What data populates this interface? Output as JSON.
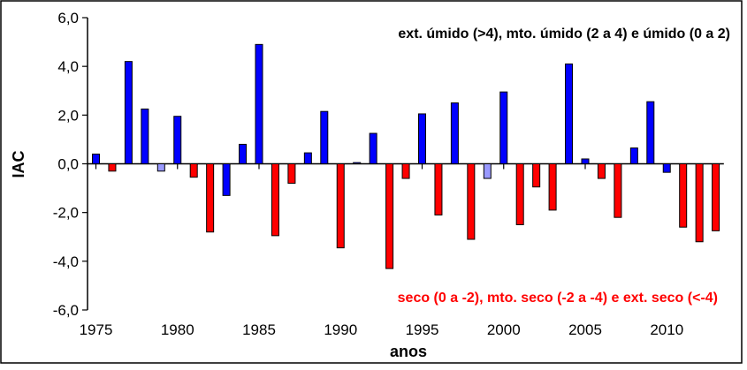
{
  "chart_data": {
    "type": "bar",
    "xlabel": "anos",
    "ylabel": "IAC",
    "ylim": [
      -6,
      6
    ],
    "y_ticks": [
      "6,0",
      "4,0",
      "2,0",
      "0,0",
      "-2,0",
      "-4,0",
      "-6,0"
    ],
    "y_tick_values": [
      6,
      4,
      2,
      0,
      -2,
      -4,
      -6
    ],
    "x_ticks": [
      "1975",
      "1980",
      "1985",
      "1990",
      "1995",
      "2000",
      "2005",
      "2010"
    ],
    "x_tick_values": [
      1975,
      1980,
      1985,
      1990,
      1995,
      2000,
      2005,
      2010
    ],
    "annotations": {
      "wet": "ext. úmido (>4), mto. úmido (2 a 4) e úmido (0 a 2)",
      "dry": "seco (0 a -2), mto. seco (-2 a -4) e ext. seco (<-4)"
    },
    "colors": {
      "wet_strong": "#0000ff",
      "wet_light": "#9999ff",
      "dry": "#ff0000",
      "wet_annotation": "#000000",
      "dry_annotation": "#ff0000"
    },
    "x": [
      1975,
      1976,
      1977,
      1978,
      1979,
      1980,
      1981,
      1982,
      1983,
      1984,
      1985,
      1986,
      1987,
      1988,
      1989,
      1990,
      1991,
      1992,
      1993,
      1994,
      1995,
      1996,
      1997,
      1998,
      1999,
      2000,
      2001,
      2002,
      2003,
      2004,
      2005,
      2006,
      2007,
      2008,
      2009,
      2010,
      2011,
      2012,
      2013
    ],
    "values": [
      0.4,
      -0.3,
      4.2,
      2.25,
      -0.3,
      1.95,
      -0.55,
      -2.8,
      -1.3,
      0.8,
      4.9,
      -2.95,
      -0.8,
      0.45,
      2.15,
      -3.45,
      0.05,
      1.25,
      -4.3,
      -0.6,
      2.05,
      -2.1,
      2.5,
      -3.1,
      -0.6,
      2.95,
      -2.5,
      -0.95,
      -1.9,
      4.1,
      0.2,
      -0.6,
      -2.2,
      0.65,
      2.55,
      -0.35,
      -2.6,
      -3.2,
      -2.75
    ],
    "bar_colors": [
      "#0000ff",
      "#ff0000",
      "#0000ff",
      "#0000ff",
      "#9999ff",
      "#0000ff",
      "#ff0000",
      "#ff0000",
      "#0000ff",
      "#0000ff",
      "#0000ff",
      "#ff0000",
      "#ff0000",
      "#0000ff",
      "#0000ff",
      "#ff0000",
      "#0000ff",
      "#0000ff",
      "#ff0000",
      "#ff0000",
      "#0000ff",
      "#ff0000",
      "#0000ff",
      "#ff0000",
      "#9999ff",
      "#0000ff",
      "#ff0000",
      "#ff0000",
      "#ff0000",
      "#0000ff",
      "#0000ff",
      "#ff0000",
      "#ff0000",
      "#0000ff",
      "#0000ff",
      "#0000ff",
      "#ff0000",
      "#ff0000",
      "#ff0000"
    ]
  }
}
